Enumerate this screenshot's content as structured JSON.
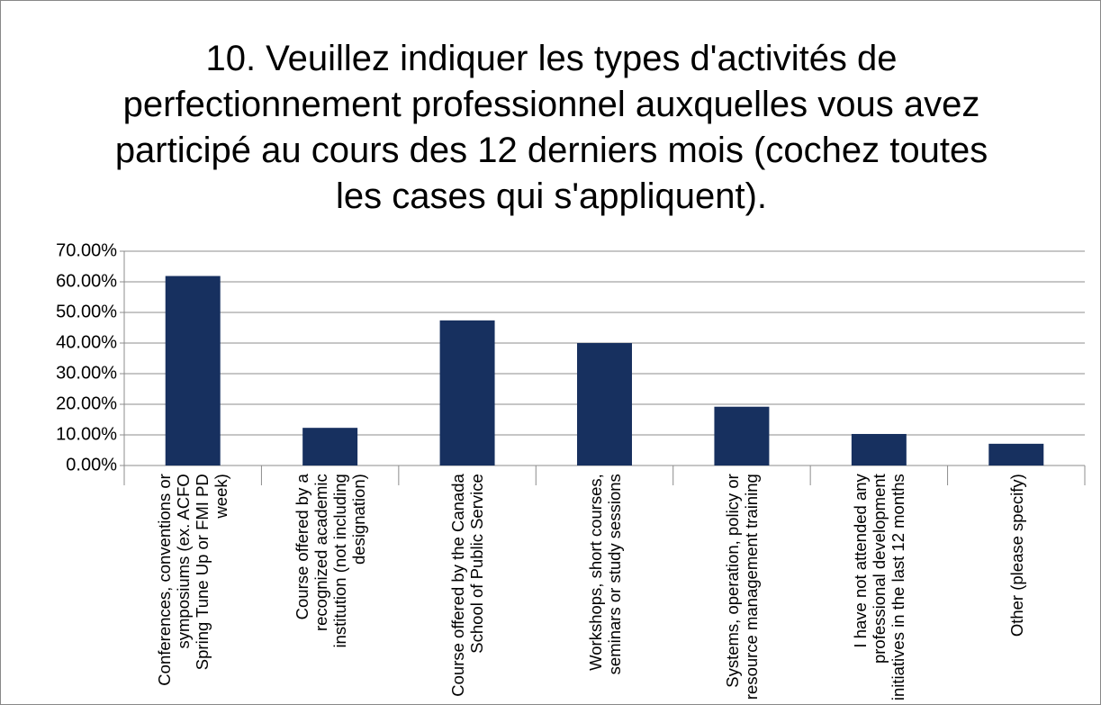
{
  "chart_data": {
    "type": "bar",
    "title": "10. Veuillez indiquer les types d'activités de perfectionnement professionnel auxquelles vous avez participé au cours des 12 derniers mois (cochez toutes les cases qui s'appliquent).",
    "categories": [
      "Conferences, conventions or symposiums (ex. ACFO Spring Tune Up or FMI PD week)",
      "Course offered by a recognized academic institution (not including designation)",
      "Course offered by the Canada School of Public Service",
      "Workshops, short courses, seminars or study sessions",
      "Systems, operation, policy or resource management training",
      "I have not attended any professional development initiatives in the last 12 months",
      "Other (please specify)"
    ],
    "values": [
      61.9,
      12.3,
      47.4,
      40.0,
      19.2,
      10.3,
      7.1
    ],
    "color": "#17305f",
    "ylim": [
      0,
      70
    ],
    "yticks": [
      {
        "value": 0,
        "label": "0.00%"
      },
      {
        "value": 10,
        "label": "10.00%"
      },
      {
        "value": 20,
        "label": "20.00%"
      },
      {
        "value": 30,
        "label": "30.00%"
      },
      {
        "value": 40,
        "label": "40.00%"
      },
      {
        "value": 50,
        "label": "50.00%"
      },
      {
        "value": 60,
        "label": "60.00%"
      },
      {
        "value": 70,
        "label": "70.00%"
      }
    ],
    "grid": true
  }
}
